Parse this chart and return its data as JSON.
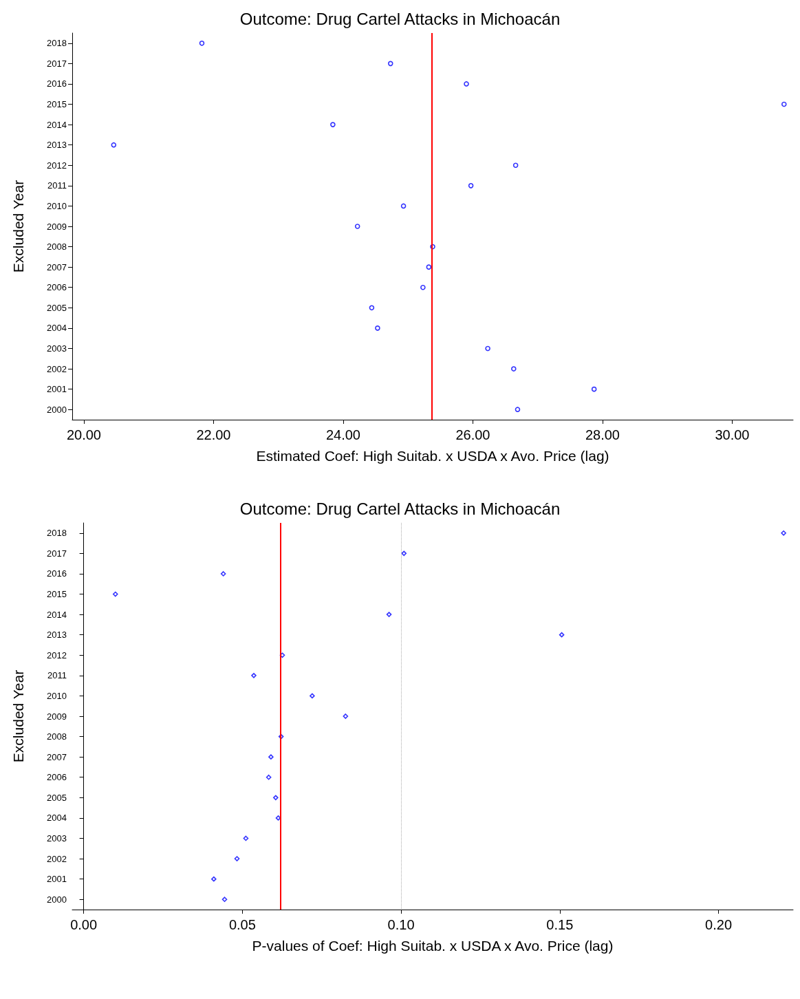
{
  "chart_data": [
    {
      "type": "scatter",
      "title": "Outcome: Drug Cartel Attacks in Michoacán",
      "xlabel": "Estimated Coef: High Suitab. x USDA x Avo. Price (lag)",
      "ylabel": "Excluded Year",
      "orientation": "horizontal",
      "marker": "circle",
      "grid": false,
      "categories": [
        "2018",
        "2017",
        "2016",
        "2015",
        "2014",
        "2013",
        "2012",
        "2011",
        "2010",
        "2009",
        "2008",
        "2007",
        "2006",
        "2005",
        "2004",
        "2003",
        "2002",
        "2001",
        "2000"
      ],
      "series": [
        {
          "color": "#0000ff",
          "values": [
            21.82,
            24.73,
            25.9,
            30.8,
            23.84,
            20.46,
            26.66,
            25.97,
            24.93,
            24.22,
            25.38,
            25.32,
            25.23,
            24.44,
            24.53,
            26.23,
            26.63,
            27.87,
            26.69
          ]
        }
      ],
      "xlim": [
        19.82,
        30.94
      ],
      "xticks": [
        {
          "value": 20,
          "label": "20.00"
        },
        {
          "value": 22,
          "label": "22.00"
        },
        {
          "value": 24,
          "label": "24.00"
        },
        {
          "value": 26,
          "label": "26.00"
        },
        {
          "value": 28,
          "label": "28.00"
        },
        {
          "value": 30,
          "label": "30.00"
        }
      ],
      "ref_lines": [
        {
          "axis": "x",
          "value": 25.37,
          "color": "#ff0000",
          "line_style": "solid"
        }
      ]
    },
    {
      "type": "scatter",
      "title": "Outcome: Drug Cartel Attacks in Michoacán",
      "xlabel": "P-values of Coef: High Suitab. x USDA x Avo. Price (lag)",
      "ylabel": "Excluded Year",
      "orientation": "horizontal",
      "marker": "diamond",
      "grid": false,
      "categories": [
        "2018",
        "2017",
        "2016",
        "2015",
        "2014",
        "2013",
        "2012",
        "2011",
        "2010",
        "2009",
        "2008",
        "2007",
        "2006",
        "2005",
        "2004",
        "2003",
        "2002",
        "2001",
        "2000"
      ],
      "series": [
        {
          "color": "#0000ff",
          "values": [
            0.2205,
            0.1009,
            0.044,
            0.01,
            0.0962,
            0.1506,
            0.0626,
            0.0536,
            0.072,
            0.0825,
            0.0622,
            0.059,
            0.0583,
            0.0605,
            0.0613,
            0.0511,
            0.0483,
            0.041,
            0.0444
          ]
        }
      ],
      "xlim": [
        -0.0036,
        0.2235
      ],
      "xticks": [
        {
          "value": 0,
          "label": "0.00"
        },
        {
          "value": 0.05,
          "label": "0.05"
        },
        {
          "value": 0.1,
          "label": "0.10"
        },
        {
          "value": 0.15,
          "label": "0.15"
        },
        {
          "value": 0.2,
          "label": "0.20"
        }
      ],
      "ref_lines": [
        {
          "axis": "x",
          "value": 0.062,
          "color": "#ff0000",
          "line_style": "solid"
        },
        {
          "axis": "x",
          "value": 0.1,
          "color": "#aaaaaa",
          "line_style": "dotted"
        }
      ]
    }
  ]
}
